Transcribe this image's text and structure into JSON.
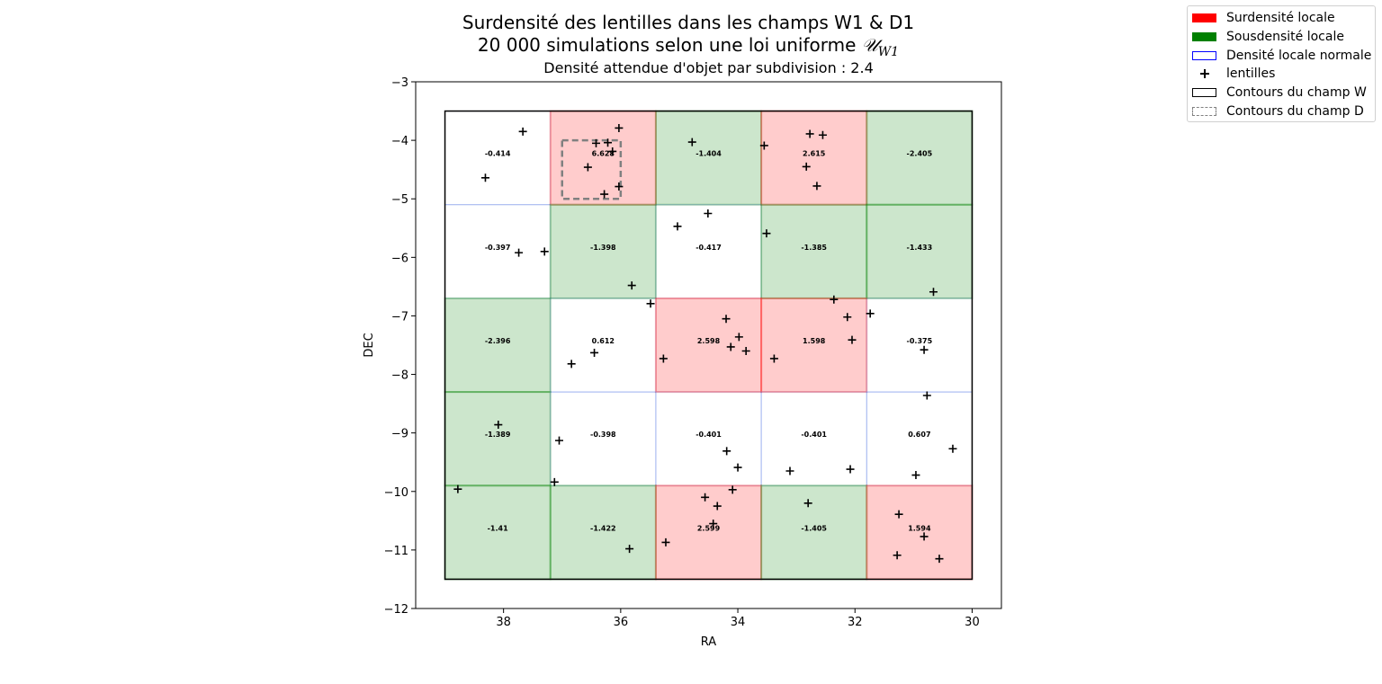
{
  "title_line1": "Surdensité des lentilles dans les champs W1 & D1",
  "title_line2_prefix": "20 000 simulations selon une loi uniforme",
  "title_symbol": "𝒰",
  "title_symbol_sub": "W1",
  "subtitle": "Densité attendue d'objet par subdivision : 2.4",
  "legend": [
    {
      "key": "over",
      "label": "Surdensité locale",
      "fill": "#ff0000",
      "stroke": "#ff0000"
    },
    {
      "key": "under",
      "label": "Sousdensité locale",
      "fill": "#008000",
      "stroke": "#008000"
    },
    {
      "key": "normal",
      "label": "Densité locale normale",
      "fill": "#ffffff",
      "stroke": "#0000ff"
    },
    {
      "key": "lens",
      "label": "lentilles",
      "marker": "plus"
    },
    {
      "key": "w_contour",
      "label": "Contours du champ W",
      "fill": "#ffffff",
      "stroke": "#000000"
    },
    {
      "key": "d_contour",
      "label": "Contours du champ D",
      "fill": "#ffffff",
      "stroke": "#808080",
      "dashed": true
    }
  ],
  "chart_data": {
    "type": "scatter",
    "xlabel": "RA",
    "ylabel": "DEC",
    "xlim": [
      39.5,
      29.5
    ],
    "ylim": [
      -12,
      -3
    ],
    "x_inverted": true,
    "x_ticks": [
      38,
      36,
      34,
      32,
      30
    ],
    "y_ticks": [
      -3,
      -4,
      -5,
      -6,
      -7,
      -8,
      -9,
      -10,
      -11,
      -12
    ],
    "colors": {
      "over": "#ff0000",
      "under": "#008000",
      "normal": "#4169e1"
    },
    "grid": {
      "ra_edges": [
        39,
        37.2,
        35.4,
        33.6,
        31.8,
        30
      ],
      "dec_edges": [
        -3.5,
        -5.1,
        -6.7,
        -8.3,
        -9.9,
        -11.5
      ],
      "cells": [
        [
          {
            "value": "-0.414",
            "cls": "normal"
          },
          {
            "value": "6.628",
            "cls": "over"
          },
          {
            "value": "-1.404",
            "cls": "under"
          },
          {
            "value": "2.615",
            "cls": "over"
          },
          {
            "value": "-2.405",
            "cls": "under"
          }
        ],
        [
          {
            "value": "-0.397",
            "cls": "normal"
          },
          {
            "value": "-1.398",
            "cls": "under"
          },
          {
            "value": "-0.417",
            "cls": "normal"
          },
          {
            "value": "-1.385",
            "cls": "under"
          },
          {
            "value": "-1.433",
            "cls": "under"
          }
        ],
        [
          {
            "value": "-2.396",
            "cls": "under"
          },
          {
            "value": "0.612",
            "cls": "normal"
          },
          {
            "value": "2.598",
            "cls": "over"
          },
          {
            "value": "1.598",
            "cls": "over"
          },
          {
            "value": "-0.375",
            "cls": "normal"
          }
        ],
        [
          {
            "value": "-1.389",
            "cls": "under"
          },
          {
            "value": "-0.398",
            "cls": "normal"
          },
          {
            "value": "-0.401",
            "cls": "normal"
          },
          {
            "value": "-0.401",
            "cls": "normal"
          },
          {
            "value": "0.607",
            "cls": "normal"
          }
        ],
        [
          {
            "value": "-1.41",
            "cls": "under"
          },
          {
            "value": "-1.422",
            "cls": "under"
          },
          {
            "value": "2.599",
            "cls": "over"
          },
          {
            "value": "-1.405",
            "cls": "under"
          },
          {
            "value": "1.594",
            "cls": "over"
          }
        ]
      ]
    },
    "w_field": {
      "ra": [
        39,
        30
      ],
      "dec": [
        -3.5,
        -11.5
      ]
    },
    "d_field": {
      "ra": [
        37,
        36
      ],
      "dec": [
        -4,
        -5
      ]
    },
    "lenses": [
      [
        37.67,
        -3.85
      ],
      [
        38.31,
        -4.64
      ],
      [
        36.03,
        -3.79
      ],
      [
        36.42,
        -4.05
      ],
      [
        36.22,
        -4.04
      ],
      [
        36.14,
        -4.19
      ],
      [
        36.56,
        -4.46
      ],
      [
        36.28,
        -4.92
      ],
      [
        36.03,
        -4.79
      ],
      [
        34.78,
        -4.03
      ],
      [
        33.55,
        -4.09
      ],
      [
        32.77,
        -3.89
      ],
      [
        32.55,
        -3.91
      ],
      [
        32.83,
        -4.45
      ],
      [
        32.65,
        -4.78
      ],
      [
        37.74,
        -5.92
      ],
      [
        37.3,
        -5.9
      ],
      [
        35.81,
        -6.48
      ],
      [
        35.03,
        -5.47
      ],
      [
        34.51,
        -5.25
      ],
      [
        33.51,
        -5.59
      ],
      [
        30.66,
        -6.59
      ],
      [
        35.49,
        -6.79
      ],
      [
        34.2,
        -7.05
      ],
      [
        34.12,
        -7.53
      ],
      [
        33.98,
        -7.36
      ],
      [
        33.86,
        -7.6
      ],
      [
        35.27,
        -7.73
      ],
      [
        33.38,
        -7.73
      ],
      [
        32.36,
        -6.72
      ],
      [
        32.13,
        -7.02
      ],
      [
        32.05,
        -7.41
      ],
      [
        31.74,
        -6.96
      ],
      [
        30.82,
        -7.58
      ],
      [
        30.77,
        -8.36
      ],
      [
        36.84,
        -7.82
      ],
      [
        36.45,
        -7.63
      ],
      [
        38.09,
        -8.86
      ],
      [
        37.05,
        -9.13
      ],
      [
        34.19,
        -9.31
      ],
      [
        34.0,
        -9.59
      ],
      [
        33.11,
        -9.65
      ],
      [
        32.08,
        -9.62
      ],
      [
        30.96,
        -9.72
      ],
      [
        30.33,
        -9.27
      ],
      [
        38.78,
        -9.96
      ],
      [
        37.13,
        -9.84
      ],
      [
        34.56,
        -10.1
      ],
      [
        34.35,
        -10.25
      ],
      [
        34.09,
        -9.97
      ],
      [
        34.42,
        -10.55
      ],
      [
        35.23,
        -10.87
      ],
      [
        35.85,
        -10.98
      ],
      [
        32.8,
        -10.2
      ],
      [
        31.25,
        -10.39
      ],
      [
        30.82,
        -10.77
      ],
      [
        31.28,
        -11.09
      ],
      [
        30.56,
        -11.15
      ]
    ]
  }
}
